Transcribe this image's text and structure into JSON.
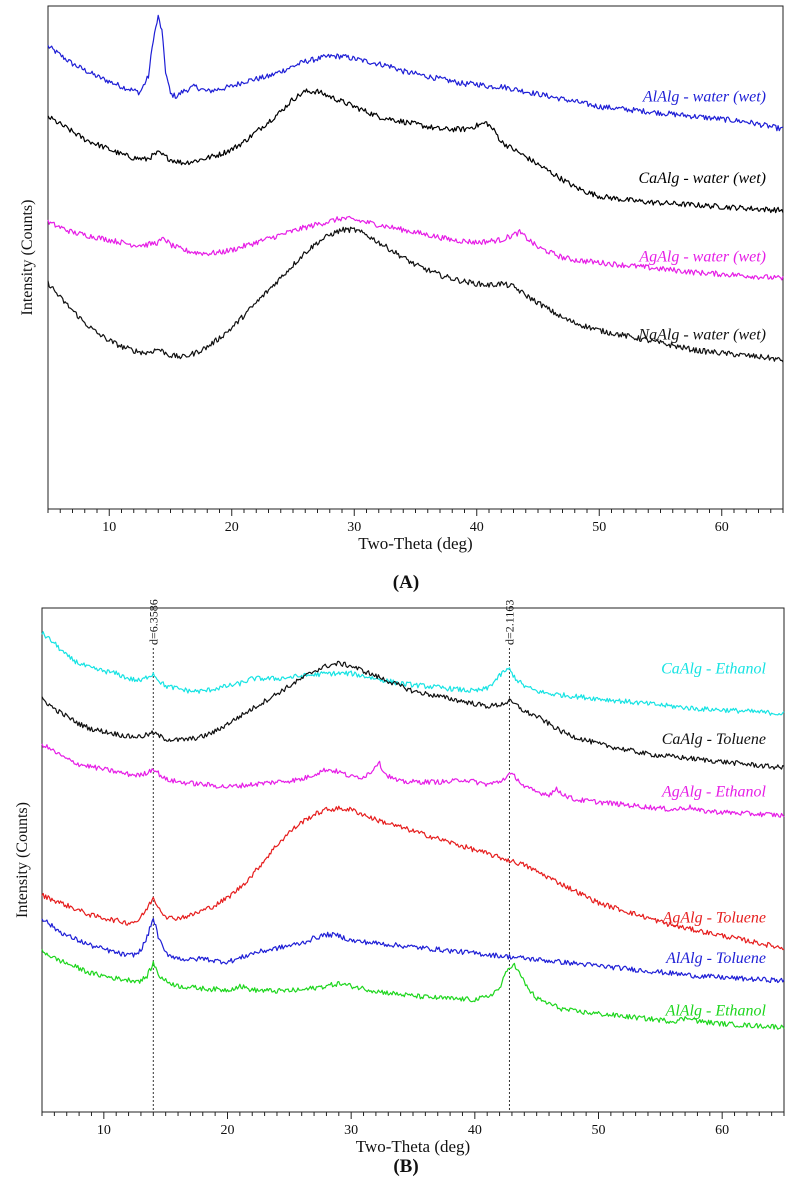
{
  "figure": {
    "panels": [
      "(A)",
      "(B)"
    ]
  },
  "chart_data": [
    {
      "type": "line",
      "panel_label": "A",
      "xlabel": "Two-Theta (deg)",
      "ylabel": "Intensity (Counts)",
      "xlim": [
        5,
        65
      ],
      "ylim": [
        0,
        100
      ],
      "x_ticks": [
        10,
        20,
        30,
        40,
        50,
        60
      ],
      "legend": "inline labels at right",
      "series": [
        {
          "name": "AlAlg - water (wet)",
          "color": "#1f1fd6",
          "x": [
            5,
            7,
            9,
            10,
            11,
            12,
            12.5,
            13.2,
            13.6,
            14.0,
            14.3,
            14.6,
            15.0,
            15.5,
            16,
            17,
            18,
            19,
            20,
            21,
            22,
            23,
            24,
            25,
            26,
            27,
            28,
            29,
            30,
            31,
            32,
            33,
            34,
            35,
            36,
            37,
            38,
            39,
            40,
            41,
            42,
            43,
            44,
            45,
            46,
            47,
            48,
            49,
            50,
            52,
            54,
            56,
            58,
            60,
            62,
            63,
            64,
            65
          ],
          "y": [
            92,
            88.5,
            86,
            85,
            84,
            83.2,
            82.8,
            86,
            93.5,
            97.8,
            95,
            87,
            82.5,
            82,
            83,
            84,
            83,
            83.5,
            84,
            85,
            85.5,
            86,
            87,
            88,
            89,
            89.5,
            90,
            90,
            89.5,
            89,
            88.5,
            88,
            87,
            86.5,
            86,
            85.5,
            85,
            84.5,
            84.5,
            84,
            84,
            83.5,
            83,
            82.5,
            82,
            81.5,
            81,
            80.5,
            80,
            79.5,
            79,
            78.5,
            78,
            77.5,
            77,
            76.5,
            76,
            75.5
          ]
        },
        {
          "name": "CaAlg - water (wet)",
          "color": "#000000",
          "x": [
            5,
            6,
            7,
            8,
            9,
            10,
            11,
            12,
            13,
            14,
            15,
            16,
            17,
            18,
            19,
            20,
            21,
            22,
            23,
            24,
            25,
            26,
            27,
            28,
            29,
            30,
            31,
            32,
            33,
            34,
            35,
            36,
            37,
            38,
            39,
            40,
            40.8,
            41.5,
            42,
            43,
            44,
            45,
            46,
            47,
            48,
            49,
            50,
            52,
            54,
            56,
            58,
            60,
            62,
            64,
            65
          ],
          "y": [
            78,
            76.5,
            75,
            73.5,
            72.5,
            71.5,
            70.5,
            69.8,
            69.5,
            70.8,
            69.5,
            68.8,
            69.2,
            69.8,
            70.5,
            71.5,
            73,
            75,
            77,
            79,
            81.5,
            83,
            83,
            82,
            81,
            80,
            79,
            78,
            77.5,
            77,
            76.5,
            76,
            75.5,
            75.5,
            75.5,
            76.2,
            76.8,
            75,
            73,
            71.5,
            70,
            68.5,
            67,
            65.5,
            64,
            63,
            62.2,
            61.5,
            61,
            60.7,
            60.4,
            60.1,
            59.8,
            59.5,
            59.4
          ]
        },
        {
          "name": "AgAlg - water (wet)",
          "color": "#e61ee6",
          "x": [
            5,
            7,
            9,
            10,
            11,
            12,
            13,
            14,
            14.5,
            15,
            16,
            17,
            18,
            19,
            20,
            22,
            24,
            26,
            28,
            29,
            30,
            31,
            32,
            33,
            34,
            36,
            38,
            40,
            42,
            43,
            43.5,
            44,
            45,
            46,
            47,
            48,
            50,
            52,
            54,
            56,
            58,
            60,
            62,
            64,
            65
          ],
          "y": [
            57,
            55,
            54,
            53.5,
            53,
            52.5,
            52.5,
            53,
            53.8,
            52.5,
            51.5,
            51,
            50.8,
            51,
            51.5,
            53,
            54.5,
            56,
            57.2,
            57.8,
            57.5,
            57,
            56.5,
            56,
            55.5,
            54.5,
            53.5,
            53,
            53.5,
            54.5,
            55,
            54,
            52,
            51,
            50,
            49.5,
            49,
            48.5,
            48,
            47.5,
            47,
            46.7,
            46.4,
            46,
            45.8
          ]
        },
        {
          "name": "NaAlg - water (wet)",
          "color": "#111111",
          "x": [
            5,
            6,
            7,
            8,
            9,
            10,
            11,
            12,
            13,
            14,
            15,
            16,
            17,
            18,
            19,
            20,
            21,
            22,
            23,
            24,
            25,
            26,
            27,
            28,
            29,
            30,
            31,
            32,
            33,
            34,
            35,
            36,
            37,
            38,
            39,
            40,
            41,
            42,
            43,
            44,
            45,
            46,
            47,
            48,
            50,
            52,
            54,
            56,
            58,
            60,
            62,
            64,
            65
          ],
          "y": [
            45,
            42,
            39.5,
            37,
            35,
            33.5,
            32.3,
            31.5,
            31,
            31.8,
            30.5,
            30.2,
            31,
            32.2,
            34,
            36,
            38.5,
            41,
            43.5,
            46,
            48.5,
            51,
            53,
            54.5,
            55.5,
            55.5,
            54.5,
            53,
            51.5,
            50,
            48.5,
            47.5,
            46.5,
            45.8,
            45.2,
            44.8,
            44.5,
            44.8,
            44.2,
            42.5,
            41,
            39.5,
            38,
            37,
            35.5,
            34.5,
            33.5,
            32.5,
            31.5,
            31,
            30.5,
            30,
            29.5
          ]
        }
      ]
    },
    {
      "type": "line",
      "panel_label": "B",
      "xlabel": "Two-Theta (deg)",
      "ylabel": "Intensity (Counts)",
      "xlim": [
        5,
        65
      ],
      "ylim": [
        0,
        100
      ],
      "x_ticks": [
        10,
        20,
        30,
        40,
        50,
        60
      ],
      "legend": "inline labels at right",
      "reference_lines": [
        {
          "x": 14.0,
          "label": "d=6.3586"
        },
        {
          "x": 42.8,
          "label": "d=2.1163"
        }
      ],
      "series": [
        {
          "name": "CaAlg - Ethanol",
          "color": "#17e3e3",
          "x": [
            5,
            6,
            7,
            8,
            9,
            10,
            11,
            12,
            13,
            13.6,
            14.0,
            14.5,
            15,
            16,
            17,
            18,
            19,
            20,
            21,
            22,
            24,
            26,
            28,
            30,
            32,
            34,
            36,
            38,
            40,
            41,
            41.8,
            42.4,
            42.8,
            43.3,
            44,
            45,
            46,
            48,
            50,
            52,
            54,
            56,
            58,
            60,
            62,
            64,
            65
          ],
          "y": [
            95,
            93,
            90.5,
            89,
            88,
            87.5,
            87,
            86,
            85.5,
            86.5,
            87,
            85.5,
            84.5,
            84,
            83.5,
            83.5,
            84,
            84.5,
            85,
            86,
            86,
            86.5,
            87,
            87,
            86,
            85,
            84.5,
            84,
            83.5,
            84,
            86,
            87.5,
            87.8,
            86,
            84.5,
            83.5,
            83,
            82.5,
            82,
            81.5,
            81,
            80.5,
            80,
            79.8,
            79.5,
            79.2,
            79
          ]
        },
        {
          "name": "CaAlg - Toluene",
          "color": "#111111",
          "x": [
            5,
            6,
            7,
            8,
            9,
            10,
            11,
            12,
            13,
            14,
            15,
            16,
            17,
            18,
            19,
            20,
            21,
            22,
            23,
            24,
            25,
            26,
            27,
            28,
            29,
            30,
            31,
            32,
            33,
            34,
            35,
            36,
            38,
            40,
            41,
            42,
            42.8,
            43.5,
            44,
            45,
            46,
            47,
            48,
            50,
            52,
            54,
            56,
            58,
            60,
            62,
            64,
            65
          ],
          "y": [
            82,
            80,
            78.5,
            77,
            76,
            75.5,
            75,
            74.5,
            74.5,
            75.2,
            74,
            73.8,
            74,
            74.5,
            75.5,
            77,
            78.5,
            80,
            81.5,
            83,
            84.5,
            86,
            87.5,
            88.5,
            89,
            88.5,
            87.5,
            86.5,
            85.5,
            84.5,
            83.5,
            83,
            82,
            81,
            80.5,
            80.8,
            81.5,
            80.5,
            79.5,
            78.5,
            77,
            75.5,
            74.5,
            73,
            72,
            71,
            70.5,
            70,
            69.5,
            69,
            68.5,
            68.3
          ]
        },
        {
          "name": "AgAlg - Ethanol",
          "color": "#e61ee6",
          "x": [
            5,
            6,
            7,
            8,
            9,
            10,
            11,
            12,
            13,
            13.6,
            14.0,
            14.5,
            15,
            16,
            18,
            20,
            22,
            24,
            26,
            27,
            28,
            29,
            30,
            31,
            31.6,
            32.2,
            32.8,
            33.5,
            34,
            36,
            38,
            39,
            40,
            41,
            42,
            42.8,
            43.3,
            44,
            45,
            46,
            46.6,
            47.2,
            48,
            50,
            52,
            54,
            56,
            57.5,
            58,
            60,
            62,
            64,
            65
          ],
          "y": [
            73,
            71.5,
            70,
            69,
            68.5,
            68,
            67.5,
            67,
            66.8,
            67.5,
            68.2,
            67,
            66,
            65.5,
            65,
            64.5,
            65,
            65.5,
            66,
            67,
            68,
            67.5,
            66.5,
            66.5,
            67.5,
            69.5,
            67,
            66,
            65.5,
            65.5,
            65.5,
            66,
            65.5,
            65,
            65.5,
            67,
            66.5,
            64.5,
            63.5,
            63,
            64,
            63,
            62,
            61.5,
            61,
            60.5,
            60,
            60.5,
            59.8,
            59.5,
            59.2,
            59,
            58.8
          ]
        },
        {
          "name": "AgAlg - Toluene",
          "color": "#e61e1e",
          "x": [
            5,
            6,
            7,
            8,
            9,
            10,
            11,
            12,
            12.8,
            13.4,
            14.0,
            14.6,
            15.2,
            16,
            17,
            18,
            19,
            20,
            21,
            22,
            23,
            24,
            25,
            26,
            27,
            28,
            29,
            30,
            31,
            32,
            34,
            36,
            38,
            40,
            42,
            44,
            46,
            48,
            50,
            52,
            54,
            56,
            58,
            60,
            62,
            64,
            65
          ],
          "y": [
            43,
            42,
            41,
            40,
            39,
            38.5,
            38,
            37.5,
            38,
            40,
            42.5,
            40,
            38.5,
            38.5,
            39,
            40,
            41,
            42.5,
            44.5,
            47,
            50,
            53,
            55.5,
            57.5,
            59,
            60,
            60.2,
            60,
            59,
            58,
            56.5,
            55,
            53.5,
            52,
            50.5,
            49,
            46.5,
            44,
            41.5,
            40,
            38.5,
            37,
            36,
            35,
            34,
            33,
            32.5
          ]
        },
        {
          "name": "AlAlg - Toluene",
          "color": "#1f1fd6",
          "x": [
            5,
            6,
            7,
            8,
            9,
            10,
            11,
            12,
            12.8,
            13.4,
            14.0,
            14.5,
            15,
            16,
            17,
            18,
            19,
            20,
            21,
            22,
            24,
            26,
            27,
            28,
            29,
            30,
            32,
            34,
            36,
            38,
            40,
            42,
            44,
            46,
            48,
            50,
            52,
            54,
            56,
            58,
            60,
            62,
            64,
            65
          ],
          "y": [
            38.5,
            36.5,
            35,
            34,
            33,
            32.3,
            31.6,
            31,
            31.5,
            34,
            38.5,
            34,
            31.5,
            30.5,
            30.2,
            30.5,
            30,
            29.8,
            30.5,
            31.5,
            32.5,
            33.5,
            34.5,
            35.2,
            35,
            34,
            33.5,
            33,
            32.5,
            32,
            31.5,
            31,
            30.5,
            30,
            29.5,
            29,
            28.5,
            28,
            27.5,
            27,
            26.7,
            26.4,
            26.2,
            26
          ]
        },
        {
          "name": "AlAlg - Ethanol",
          "color": "#1ed61e",
          "x": [
            5,
            6,
            7,
            8,
            9,
            10,
            11,
            12,
            13,
            13.5,
            14.0,
            14.5,
            15,
            16,
            18,
            20,
            21,
            22,
            24,
            26,
            28,
            29,
            30,
            32,
            34,
            36,
            38,
            40,
            41,
            42,
            42.6,
            43.1,
            43.6,
            44.3,
            45,
            46,
            47,
            48,
            50,
            52,
            54,
            56,
            57.5,
            58,
            60,
            62,
            64,
            65
          ],
          "y": [
            32,
            30.5,
            29.5,
            28.5,
            27.5,
            27,
            26.5,
            26.2,
            26,
            27,
            29.5,
            27,
            26,
            25,
            24.5,
            24.2,
            25,
            24.2,
            24,
            24.2,
            25,
            25.5,
            25,
            24,
            23.3,
            22.8,
            22.5,
            22.3,
            22.8,
            24.5,
            28,
            29.5,
            27.5,
            24.5,
            22.5,
            21.5,
            20.5,
            20,
            19.5,
            19,
            18.5,
            18,
            18.8,
            18,
            17.5,
            17.2,
            17,
            16.8
          ]
        }
      ]
    }
  ]
}
